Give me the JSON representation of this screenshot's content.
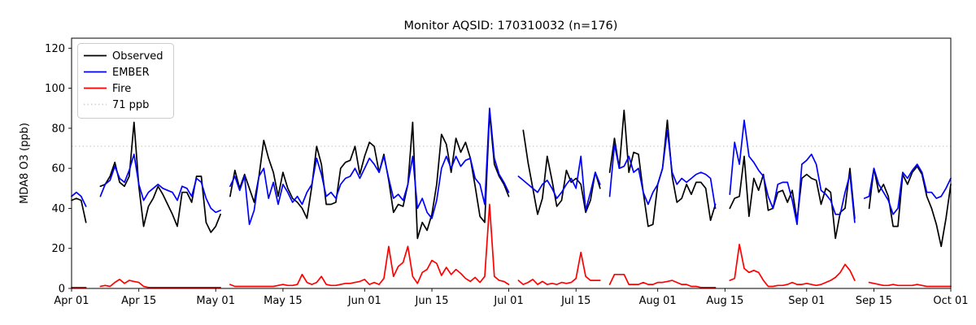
{
  "chart_data": {
    "type": "line",
    "title": "Monitor AQSID: 170310032 (n=176)",
    "monitor_id": "170310032",
    "n_points": 176,
    "xlabel": "",
    "ylabel": "MDA8 O3 (ppb)",
    "ylim": [
      0,
      125
    ],
    "yticks": [
      0,
      20,
      40,
      60,
      80,
      100,
      120
    ],
    "grid": false,
    "legend_position": "upper-left",
    "x_start": "Apr 01",
    "x_end": "Oct 01",
    "days_total": 183,
    "xticks": [
      {
        "label": "Apr 01",
        "day": 0
      },
      {
        "label": "Apr 15",
        "day": 14
      },
      {
        "label": "May 01",
        "day": 30
      },
      {
        "label": "May 15",
        "day": 44
      },
      {
        "label": "Jun 01",
        "day": 61
      },
      {
        "label": "Jun 15",
        "day": 75
      },
      {
        "label": "Jul 01",
        "day": 91
      },
      {
        "label": "Jul 15",
        "day": 105
      },
      {
        "label": "Aug 01",
        "day": 122
      },
      {
        "label": "Aug 15",
        "day": 136
      },
      {
        "label": "Sep 01",
        "day": 153
      },
      {
        "label": "Sep 15",
        "day": 167
      },
      {
        "label": "Oct 01",
        "day": 183
      }
    ],
    "threshold": {
      "value": 71,
      "label": "71 ppb",
      "color": "#d2d2d2",
      "style": "dotted"
    },
    "legend": [
      {
        "label": "Observed",
        "color": "#000000",
        "style": "solid"
      },
      {
        "label": "EMBER",
        "color": "#0000ff",
        "style": "solid"
      },
      {
        "label": "Fire",
        "color": "#ff0000",
        "style": "solid"
      },
      {
        "label": "71 ppb",
        "color": "#d2d2d2",
        "style": "dotted"
      }
    ],
    "series": [
      {
        "name": "Observed",
        "color": "#000000",
        "values": [
          44,
          45,
          44,
          33,
          null,
          null,
          51,
          52,
          56,
          63,
          53,
          51,
          56,
          83,
          51,
          31,
          41,
          45,
          51,
          47,
          42,
          37,
          31,
          48,
          48,
          43,
          56,
          56,
          33,
          28,
          31,
          37,
          null,
          46,
          59,
          50,
          57,
          50,
          43,
          56,
          74,
          65,
          58,
          46,
          58,
          50,
          45,
          43,
          40,
          35,
          51,
          71,
          62,
          42,
          42,
          43,
          60,
          63,
          64,
          71,
          57,
          66,
          73,
          71,
          58,
          67,
          54,
          38,
          42,
          41,
          52,
          83,
          25,
          33,
          29,
          37,
          52,
          77,
          72,
          58,
          75,
          68,
          73,
          65,
          51,
          36,
          33,
          88,
          62,
          56,
          52,
          46,
          null,
          null,
          79,
          63,
          50,
          37,
          45,
          66,
          54,
          41,
          44,
          59,
          53,
          55,
          52,
          38,
          44,
          58,
          50,
          null,
          58,
          75,
          60,
          89,
          58,
          68,
          67,
          48,
          31,
          32,
          52,
          60,
          84,
          56,
          43,
          45,
          52,
          47,
          53,
          53,
          50,
          34,
          42,
          null,
          null,
          40,
          45,
          46,
          66,
          36,
          55,
          49,
          57,
          39,
          40,
          48,
          49,
          43,
          49,
          34,
          55,
          57,
          55,
          54,
          42,
          50,
          48,
          25,
          38,
          40,
          60,
          35,
          null,
          null,
          40,
          60,
          48,
          52,
          46,
          31,
          31,
          57,
          52,
          58,
          61,
          57,
          46,
          40,
          32,
          21,
          35,
          52
        ]
      },
      {
        "name": "EMBER",
        "color": "#0000ff",
        "values": [
          46,
          48,
          46,
          41,
          null,
          null,
          46,
          52,
          54,
          61,
          55,
          53,
          59,
          67,
          52,
          44,
          48,
          50,
          52,
          50,
          49,
          48,
          44,
          51,
          50,
          46,
          55,
          53,
          45,
          40,
          38,
          39,
          null,
          51,
          56,
          49,
          56,
          32,
          39,
          56,
          60,
          45,
          53,
          42,
          52,
          48,
          43,
          46,
          42,
          48,
          52,
          65,
          57,
          46,
          48,
          45,
          52,
          55,
          56,
          60,
          55,
          60,
          65,
          62,
          58,
          66,
          55,
          45,
          47,
          44,
          52,
          66,
          40,
          45,
          38,
          35,
          44,
          60,
          66,
          60,
          66,
          61,
          64,
          65,
          55,
          52,
          42,
          90,
          65,
          57,
          53,
          48,
          null,
          56,
          54,
          52,
          50,
          48,
          52,
          54,
          50,
          45,
          48,
          52,
          55,
          50,
          66,
          39,
          48,
          58,
          52,
          null,
          46,
          72,
          60,
          61,
          66,
          58,
          60,
          48,
          42,
          48,
          52,
          60,
          79,
          58,
          52,
          55,
          53,
          55,
          57,
          58,
          57,
          55,
          40,
          null,
          null,
          47,
          73,
          62,
          84,
          66,
          63,
          59,
          56,
          46,
          40,
          52,
          53,
          53,
          44,
          32,
          62,
          64,
          67,
          62,
          49,
          47,
          44,
          37,
          37,
          48,
          57,
          33,
          null,
          45,
          46,
          60,
          52,
          48,
          44,
          37,
          40,
          58,
          55,
          59,
          62,
          58,
          48,
          48,
          45,
          46,
          50,
          55
        ]
      },
      {
        "name": "Fire",
        "color": "#ff0000",
        "values": [
          0.5,
          0.5,
          0.5,
          0.5,
          null,
          null,
          1,
          1.5,
          1,
          3,
          4.5,
          2.5,
          4,
          3.5,
          3,
          1,
          0.5,
          0.5,
          0.5,
          0.5,
          0.5,
          0.5,
          0.5,
          0.5,
          0.5,
          0.5,
          0.5,
          0.5,
          0.5,
          0.5,
          0.5,
          0.5,
          null,
          2,
          1,
          1,
          1,
          1,
          1,
          1,
          1,
          1,
          1,
          1.5,
          2,
          1.5,
          1.5,
          2,
          7,
          3,
          2,
          3,
          6,
          2,
          1.5,
          1.5,
          2,
          2.5,
          2.5,
          3,
          3.5,
          4.5,
          2,
          3,
          2,
          5,
          21,
          6,
          11,
          13,
          21,
          6,
          2.5,
          8,
          9.5,
          14,
          12.5,
          6.5,
          10.5,
          7,
          9.5,
          7.5,
          5,
          3.5,
          5.5,
          3,
          6,
          42,
          6,
          4,
          3.5,
          2,
          null,
          4,
          2,
          3,
          4.5,
          2,
          3.5,
          2,
          2.5,
          2,
          3,
          2.5,
          3,
          5,
          18,
          6,
          4,
          4,
          4,
          null,
          2,
          7,
          7,
          7,
          2,
          2,
          2,
          3,
          2,
          2,
          3,
          3,
          3.5,
          4,
          3,
          2,
          2,
          1,
          1,
          0.5,
          0.5,
          0.5,
          0.5,
          null,
          null,
          4,
          5,
          22,
          10,
          8,
          9,
          8,
          4,
          1,
          1,
          1.5,
          1.5,
          2,
          3,
          2,
          2,
          2.5,
          2,
          1.5,
          2,
          3,
          4,
          5.5,
          8,
          12,
          9,
          4,
          null,
          null,
          3,
          2.5,
          2,
          1.5,
          1.5,
          2,
          1.5,
          1.5,
          1.5,
          1.5,
          2,
          1.5,
          1,
          1,
          1,
          1,
          1,
          1
        ]
      }
    ]
  }
}
